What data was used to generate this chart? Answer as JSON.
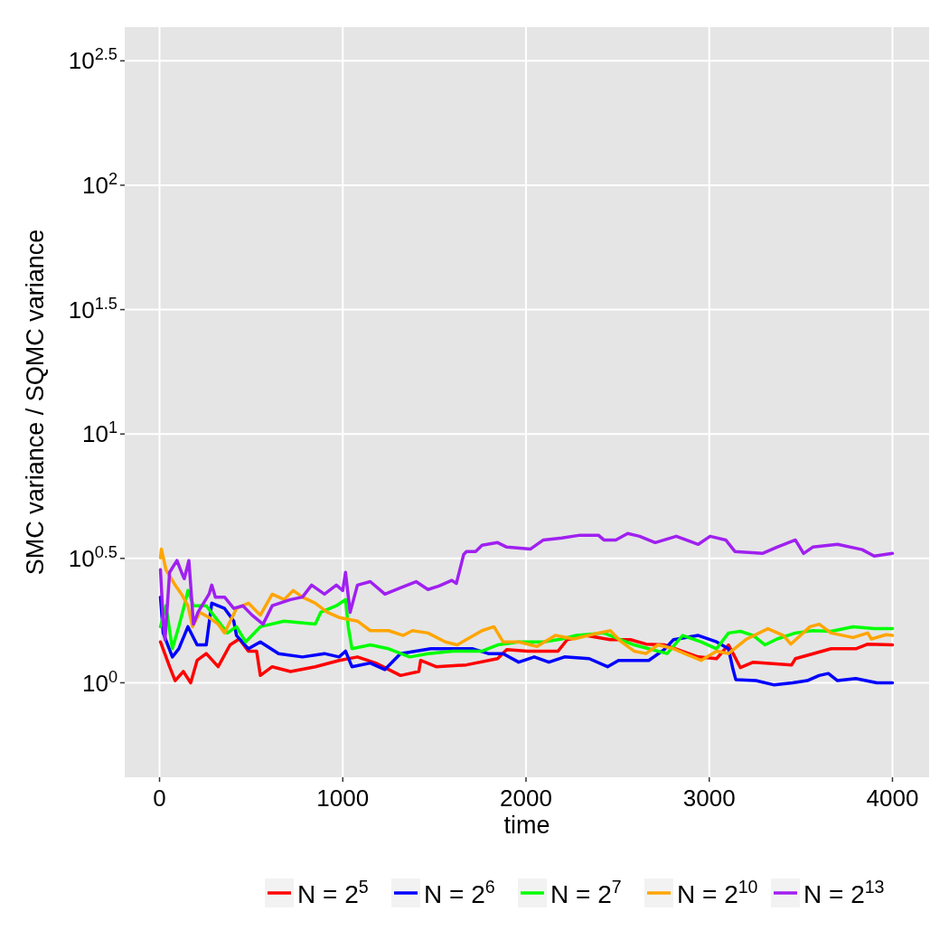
{
  "chart_data": {
    "type": "line",
    "xlabel": "time",
    "ylabel": "SMC variance / SQMC variance",
    "log": "y",
    "grid": true,
    "legend": "bottom",
    "marker": "none",
    "line_style": "solid",
    "xlim": [
      -190,
      4200
    ],
    "xticks": [
      0,
      1000,
      2000,
      3000,
      4000
    ],
    "ylim": [
      0.417,
      432
    ],
    "yticks": [
      {
        "value": 1,
        "label": "10$^{0}$"
      },
      {
        "value": 3.162,
        "label": "10$^{0.5}$"
      },
      {
        "value": 10,
        "label": "10$^{1}$"
      },
      {
        "value": 31.62,
        "label": "10$^{1.5}$"
      },
      {
        "value": 100,
        "label": "10$^{2}$"
      },
      {
        "value": 316.2,
        "label": "10$^{2.5}$"
      }
    ],
    "series": [
      {
        "name": "N = 2$^{5}$",
        "color": "#ff0000",
        "x": [
          5,
          55,
          85,
          130,
          170,
          205,
          255,
          320,
          385,
          435,
          485,
          530,
          550,
          615,
          715,
          850,
          980,
          1080,
          1180,
          1315,
          1415,
          1425,
          1510,
          1675,
          1845,
          1895,
          2010,
          2175,
          2225,
          2325,
          2460,
          2570,
          2655,
          2755,
          2940,
          3040,
          3105,
          3140,
          3170,
          3240,
          3450,
          3470,
          3665,
          3800,
          3865,
          4000
        ],
        "values": [
          1.46,
          1.16,
          1.02,
          1.11,
          1.0,
          1.23,
          1.31,
          1.16,
          1.42,
          1.5,
          1.34,
          1.34,
          1.07,
          1.16,
          1.11,
          1.16,
          1.23,
          1.27,
          1.2,
          1.07,
          1.11,
          1.23,
          1.16,
          1.18,
          1.25,
          1.36,
          1.34,
          1.34,
          1.49,
          1.55,
          1.49,
          1.49,
          1.43,
          1.42,
          1.27,
          1.25,
          1.42,
          1.27,
          1.15,
          1.21,
          1.18,
          1.25,
          1.37,
          1.37,
          1.43,
          1.42
        ]
      },
      {
        "name": "N = 2$^{6}$",
        "color": "#0000ff",
        "x": [
          5,
          20,
          70,
          105,
          155,
          205,
          255,
          285,
          355,
          405,
          420,
          485,
          550,
          650,
          780,
          900,
          980,
          1015,
          1050,
          1150,
          1230,
          1315,
          1480,
          1600,
          1710,
          1795,
          1875,
          1960,
          2045,
          2125,
          2210,
          2345,
          2445,
          2505,
          2670,
          2755,
          2805,
          2940,
          3040,
          3105,
          3130,
          3145,
          3255,
          3355,
          3455,
          3535,
          3600,
          3650,
          3700,
          3800,
          3915,
          4000
        ],
        "values": [
          2.21,
          1.585,
          1.27,
          1.37,
          1.68,
          1.42,
          1.42,
          2.09,
          1.99,
          1.77,
          1.55,
          1.37,
          1.46,
          1.31,
          1.27,
          1.31,
          1.27,
          1.34,
          1.16,
          1.2,
          1.13,
          1.31,
          1.37,
          1.37,
          1.37,
          1.31,
          1.31,
          1.21,
          1.27,
          1.21,
          1.27,
          1.25,
          1.16,
          1.23,
          1.23,
          1.36,
          1.49,
          1.55,
          1.46,
          1.37,
          1.13,
          1.03,
          1.02,
          0.98,
          1.0,
          1.02,
          1.07,
          1.09,
          1.02,
          1.04,
          1.0,
          1.0
        ]
      },
      {
        "name": "N = 2$^{7}$",
        "color": "#00ff00",
        "x": [
          5,
          35,
          70,
          105,
          135,
          155,
          185,
          255,
          320,
          370,
          420,
          470,
          550,
          680,
          850,
          880,
          965,
          1015,
          1030,
          1050,
          1150,
          1250,
          1365,
          1465,
          1600,
          1760,
          1845,
          1960,
          2095,
          2195,
          2275,
          2425,
          2505,
          2590,
          2670,
          2770,
          2855,
          2955,
          3040,
          3105,
          3170,
          3240,
          3305,
          3370,
          3470,
          3565,
          3665,
          3785,
          3900,
          4000
        ],
        "values": [
          1.68,
          2.04,
          1.37,
          1.68,
          2.04,
          2.35,
          2.04,
          2.04,
          1.77,
          1.585,
          1.68,
          1.46,
          1.68,
          1.77,
          1.72,
          1.92,
          2.04,
          2.16,
          1.68,
          1.37,
          1.42,
          1.37,
          1.27,
          1.31,
          1.34,
          1.34,
          1.42,
          1.46,
          1.46,
          1.5,
          1.55,
          1.585,
          1.5,
          1.42,
          1.37,
          1.31,
          1.55,
          1.46,
          1.37,
          1.585,
          1.61,
          1.55,
          1.42,
          1.5,
          1.585,
          1.62,
          1.61,
          1.68,
          1.65,
          1.65
        ]
      },
      {
        "name": "N = 2$^{10}$",
        "color": "#ffa500",
        "x": [
          5,
          10,
          35,
          85,
          120,
          155,
          180,
          220,
          270,
          320,
          355,
          420,
          485,
          550,
          615,
          680,
          730,
          780,
          850,
          915,
          980,
          1080,
          1150,
          1250,
          1330,
          1380,
          1465,
          1560,
          1625,
          1760,
          1825,
          1875,
          1960,
          2060,
          2160,
          2260,
          2395,
          2460,
          2520,
          2590,
          2655,
          2720,
          2805,
          2955,
          3040,
          3105,
          3205,
          3320,
          3405,
          3445,
          3550,
          3600,
          3665,
          3785,
          3865,
          3885,
          3965,
          4000
        ],
        "values": [
          3.18,
          3.45,
          2.85,
          2.47,
          2.27,
          2.04,
          1.68,
          1.92,
          1.83,
          1.72,
          1.585,
          1.99,
          2.09,
          1.87,
          2.27,
          2.16,
          2.35,
          2.21,
          2.09,
          1.92,
          1.83,
          1.77,
          1.62,
          1.62,
          1.55,
          1.62,
          1.585,
          1.46,
          1.42,
          1.62,
          1.68,
          1.46,
          1.46,
          1.4,
          1.55,
          1.5,
          1.585,
          1.62,
          1.46,
          1.34,
          1.31,
          1.42,
          1.37,
          1.23,
          1.34,
          1.31,
          1.5,
          1.65,
          1.55,
          1.43,
          1.68,
          1.72,
          1.585,
          1.52,
          1.585,
          1.5,
          1.56,
          1.55
        ]
      },
      {
        "name": "N = 2$^{13}$",
        "color": "#a020f0",
        "x": [
          5,
          20,
          30,
          55,
          95,
          120,
          135,
          160,
          170,
          185,
          210,
          270,
          285,
          305,
          355,
          405,
          455,
          505,
          565,
          615,
          715,
          780,
          830,
          900,
          965,
          1000,
          1015,
          1040,
          1080,
          1150,
          1230,
          1315,
          1400,
          1465,
          1525,
          1595,
          1620,
          1660,
          1675,
          1725,
          1760,
          1845,
          1895,
          2025,
          2095,
          2195,
          2295,
          2395,
          2425,
          2490,
          2555,
          2620,
          2705,
          2820,
          2940,
          3005,
          3090,
          3140,
          3290,
          3370,
          3470,
          3515,
          3565,
          3700,
          3835,
          3900,
          4000
        ],
        "values": [
          2.85,
          1.77,
          1.49,
          2.78,
          3.1,
          2.78,
          2.62,
          3.1,
          2.47,
          1.72,
          1.92,
          2.27,
          2.47,
          2.21,
          2.21,
          1.99,
          2.04,
          1.87,
          1.72,
          2.04,
          2.16,
          2.21,
          2.47,
          2.27,
          2.47,
          2.35,
          2.78,
          1.92,
          2.47,
          2.55,
          2.27,
          2.41,
          2.55,
          2.37,
          2.45,
          2.58,
          2.51,
          3.28,
          3.37,
          3.37,
          3.57,
          3.66,
          3.51,
          3.45,
          3.75,
          3.82,
          3.92,
          3.92,
          3.75,
          3.75,
          3.98,
          3.88,
          3.66,
          3.88,
          3.6,
          3.88,
          3.75,
          3.37,
          3.31,
          3.51,
          3.75,
          3.31,
          3.51,
          3.6,
          3.43,
          3.23,
          3.31
        ]
      }
    ]
  }
}
